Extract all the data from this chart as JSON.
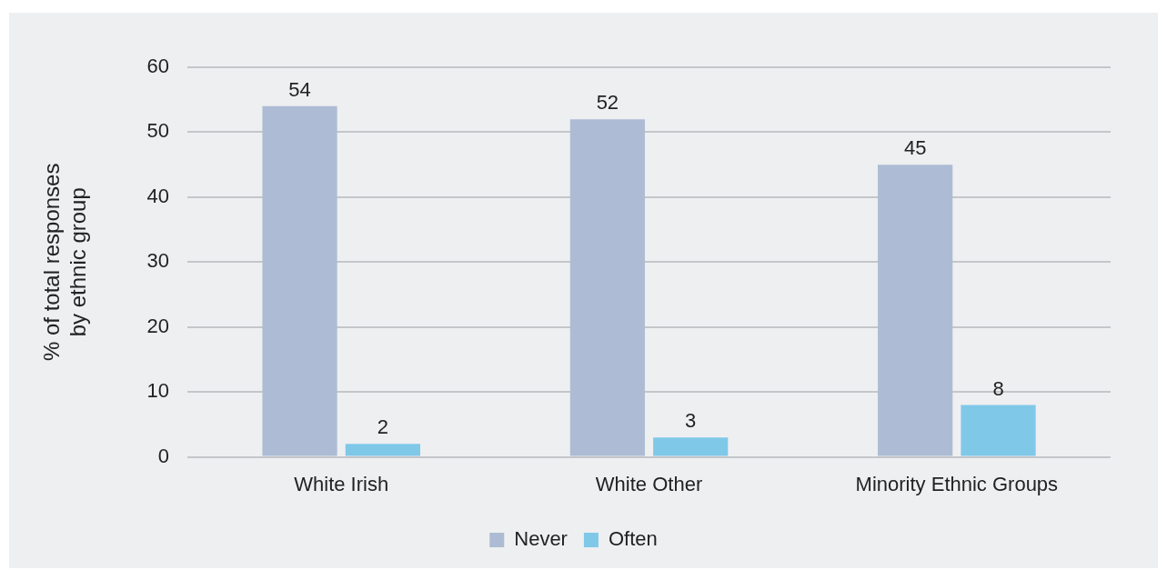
{
  "chart_data": {
    "type": "bar",
    "ylabel": "% of total responses\nby ethnic group",
    "categories": [
      "White Irish",
      "White Other",
      "Minority Ethnic Groups"
    ],
    "series": [
      {
        "name": "Never",
        "color": "#adbcd4",
        "values": [
          54,
          52,
          45
        ]
      },
      {
        "name": "Often",
        "color": "#80c8e8",
        "values": [
          2,
          3,
          8
        ]
      }
    ],
    "ylim": [
      0,
      60
    ],
    "yticks": [
      0,
      10,
      20,
      30,
      40,
      50,
      60
    ],
    "grid": "y",
    "legend": "bottom",
    "data_labels": true
  }
}
